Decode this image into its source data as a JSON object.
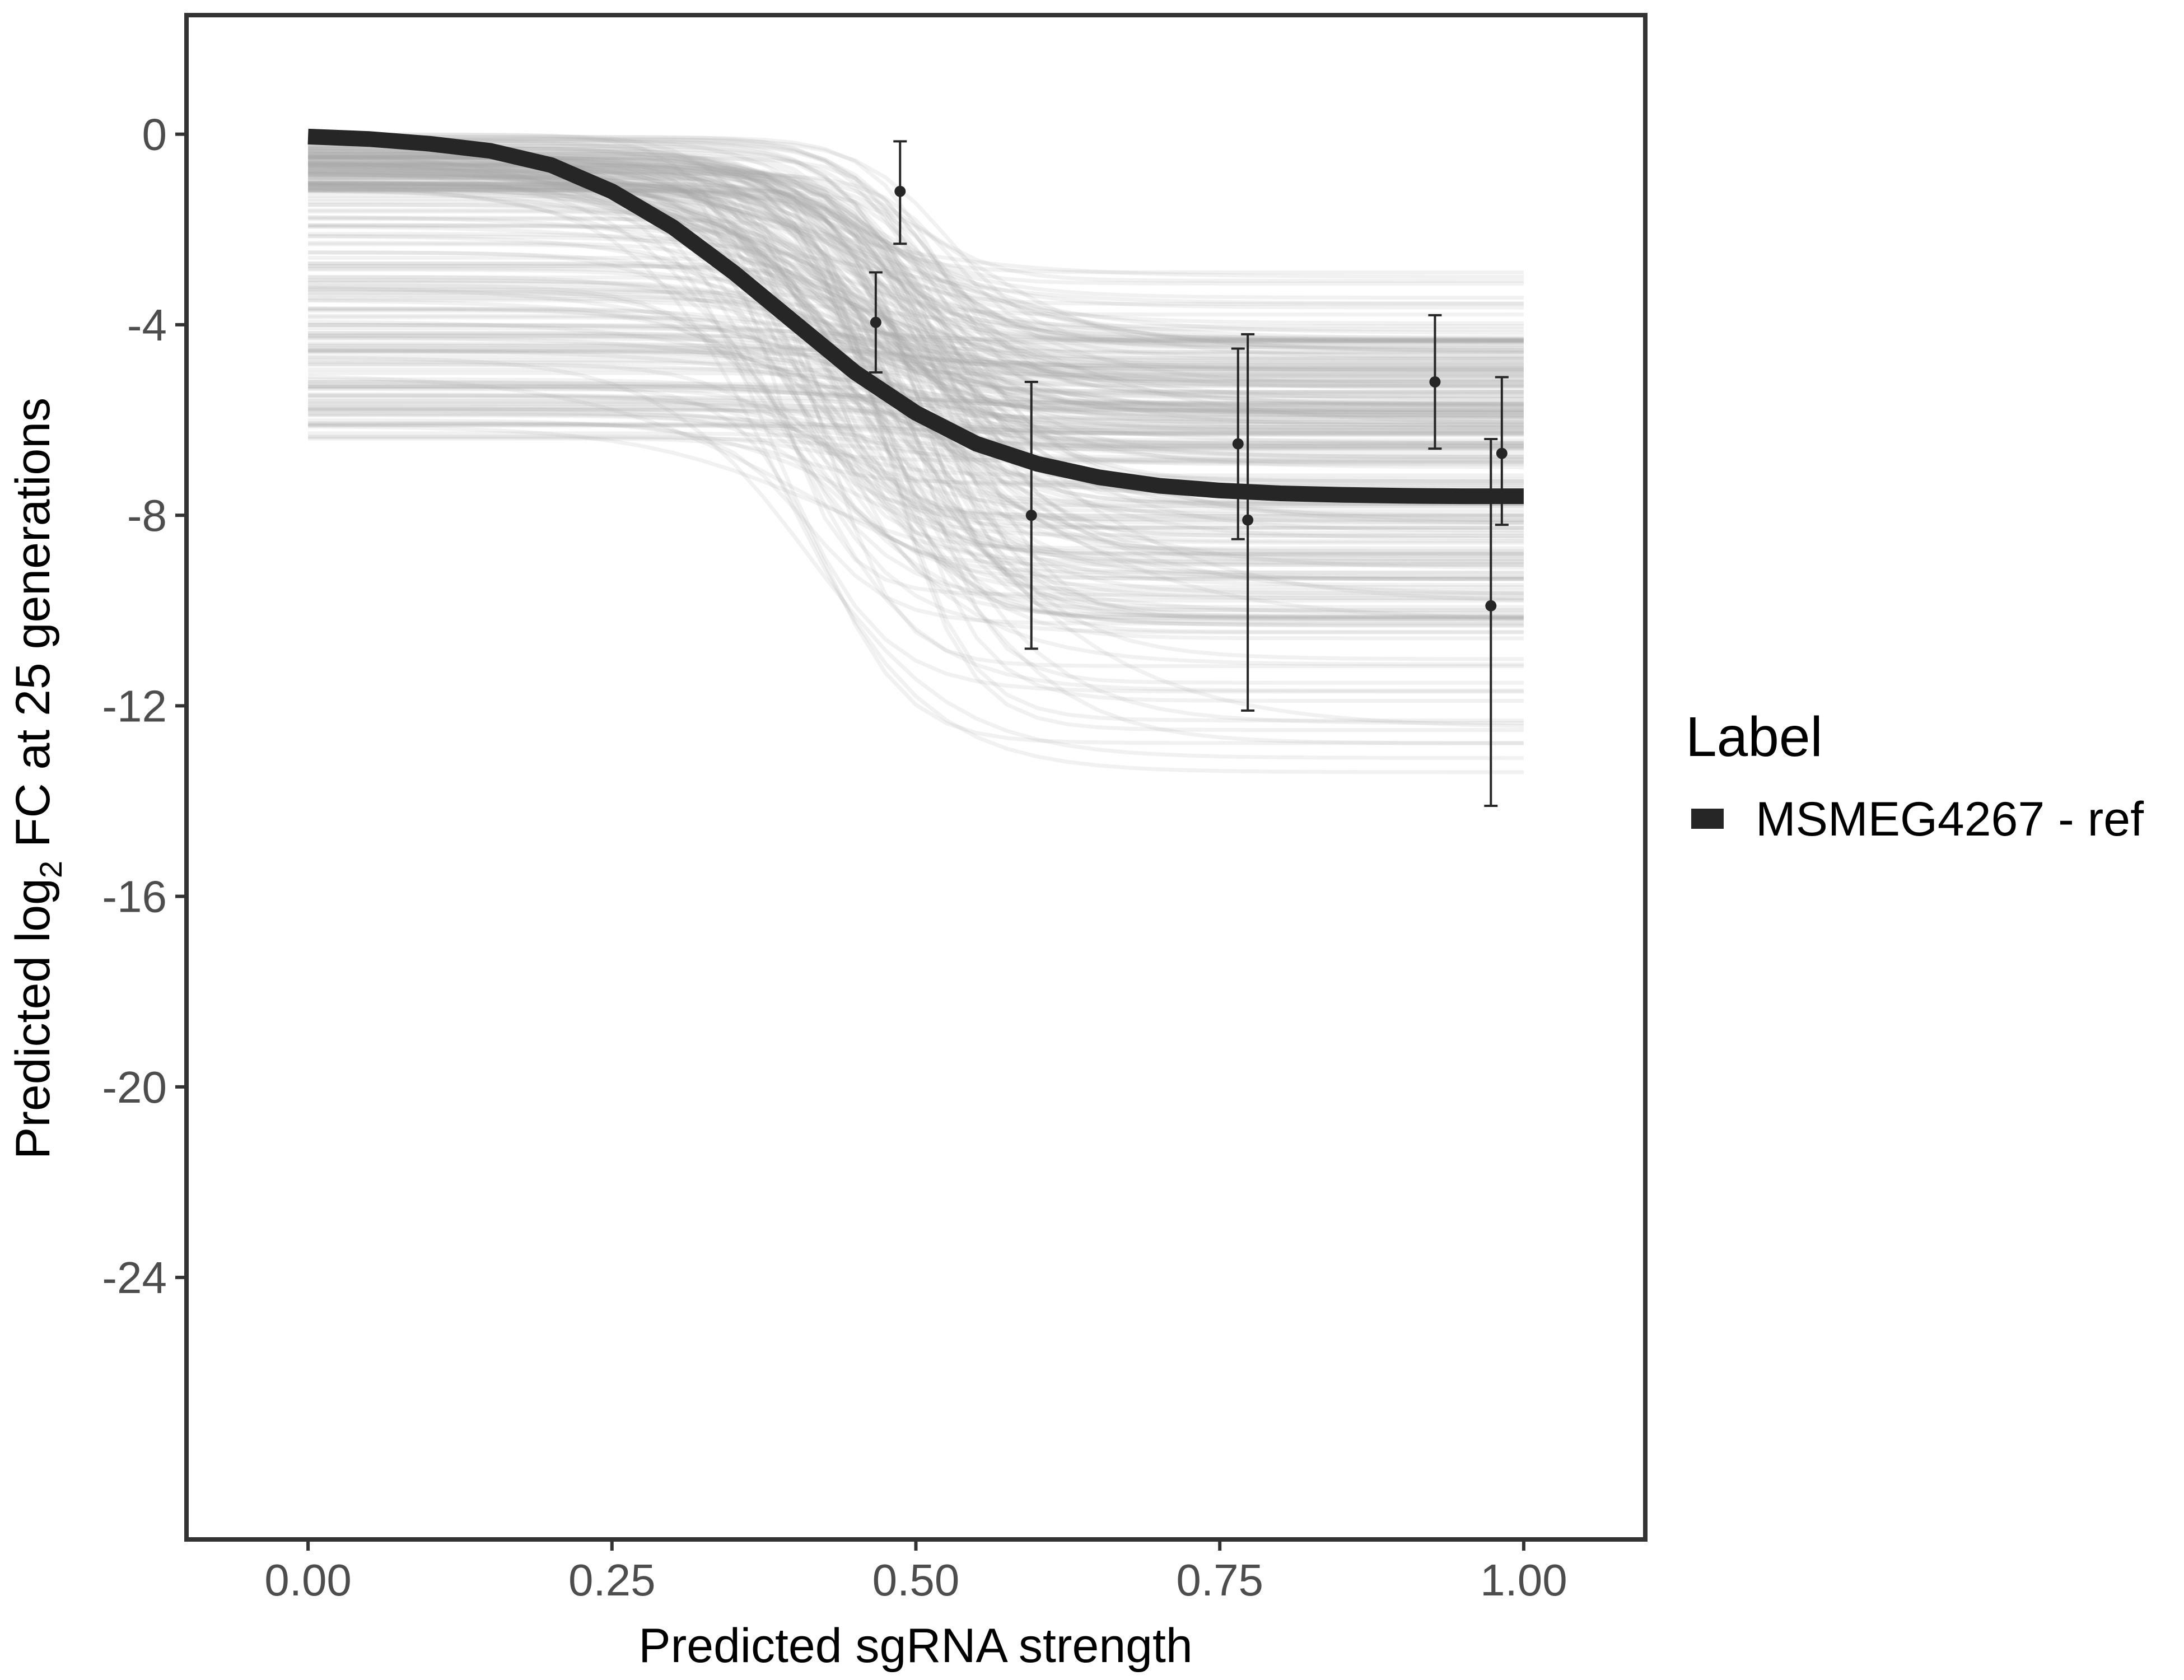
{
  "chart_data": {
    "type": "line",
    "xlabel": "Predicted sgRNA strength",
    "ylabel_prefix": "Predicted  log",
    "ylabel_subscript": "2",
    "ylabel_suffix": " FC at 25 generations",
    "xlim": [
      -0.1,
      1.1
    ],
    "ylim": [
      -29.5,
      2.5
    ],
    "x_ticks": [
      0.0,
      0.25,
      0.5,
      0.75,
      1.0
    ],
    "x_tick_labels": [
      "0.00",
      "0.25",
      "0.50",
      "0.75",
      "1.00"
    ],
    "y_ticks": [
      0,
      -4,
      -8,
      -12,
      -16,
      -20,
      -24
    ],
    "y_tick_labels": [
      "0",
      "-4",
      "-8",
      "-12",
      "-16",
      "-20",
      "-24"
    ],
    "grid": false,
    "legend": {
      "title": "Label",
      "position": "right",
      "entries": [
        {
          "label": "MSMEG4267 - ref",
          "color": "#262626"
        }
      ]
    },
    "series": [
      {
        "name": "MSMEG4267 - ref",
        "color": "#262626",
        "x": [
          0.0,
          0.05,
          0.1,
          0.15,
          0.2,
          0.25,
          0.3,
          0.35,
          0.4,
          0.45,
          0.5,
          0.55,
          0.6,
          0.65,
          0.7,
          0.75,
          0.8,
          0.85,
          0.9,
          0.95,
          1.0
        ],
        "y": [
          -0.05,
          -0.1,
          -0.2,
          -0.35,
          -0.65,
          -1.2,
          -1.95,
          -2.9,
          -3.95,
          -5.0,
          -5.85,
          -6.5,
          -6.92,
          -7.2,
          -7.38,
          -7.48,
          -7.54,
          -7.57,
          -7.59,
          -7.6,
          -7.6
        ]
      }
    ],
    "observations": {
      "color": "#262626",
      "points": [
        {
          "x": 0.487,
          "y": -1.2,
          "ymin": -2.3,
          "ymax": -0.15
        },
        {
          "x": 0.467,
          "y": -3.95,
          "ymin": -5.0,
          "ymax": -2.9
        },
        {
          "x": 0.595,
          "y": -8.0,
          "ymin": -10.8,
          "ymax": -5.2
        },
        {
          "x": 0.765,
          "y": -6.5,
          "ymin": -8.5,
          "ymax": -4.5
        },
        {
          "x": 0.773,
          "y": -8.1,
          "ymin": -12.1,
          "ymax": -4.2
        },
        {
          "x": 0.927,
          "y": -5.2,
          "ymin": -6.6,
          "ymax": -3.8
        },
        {
          "x": 0.973,
          "y": -9.9,
          "ymin": -14.1,
          "ymax": -6.4
        },
        {
          "x": 0.982,
          "y": -6.7,
          "ymin": -8.2,
          "ymax": -5.1
        }
      ]
    },
    "posterior_band": {
      "color": "#aaaaaa",
      "description_count": 260,
      "upper_start_range": [
        0.0,
        -1.5
      ],
      "lower_start_range": [
        -1.5,
        -6.4
      ],
      "upper_plateau_range": [
        -2.8,
        -5.0
      ],
      "lower_plateau_range": [
        -8.0,
        -13.8
      ]
    }
  }
}
